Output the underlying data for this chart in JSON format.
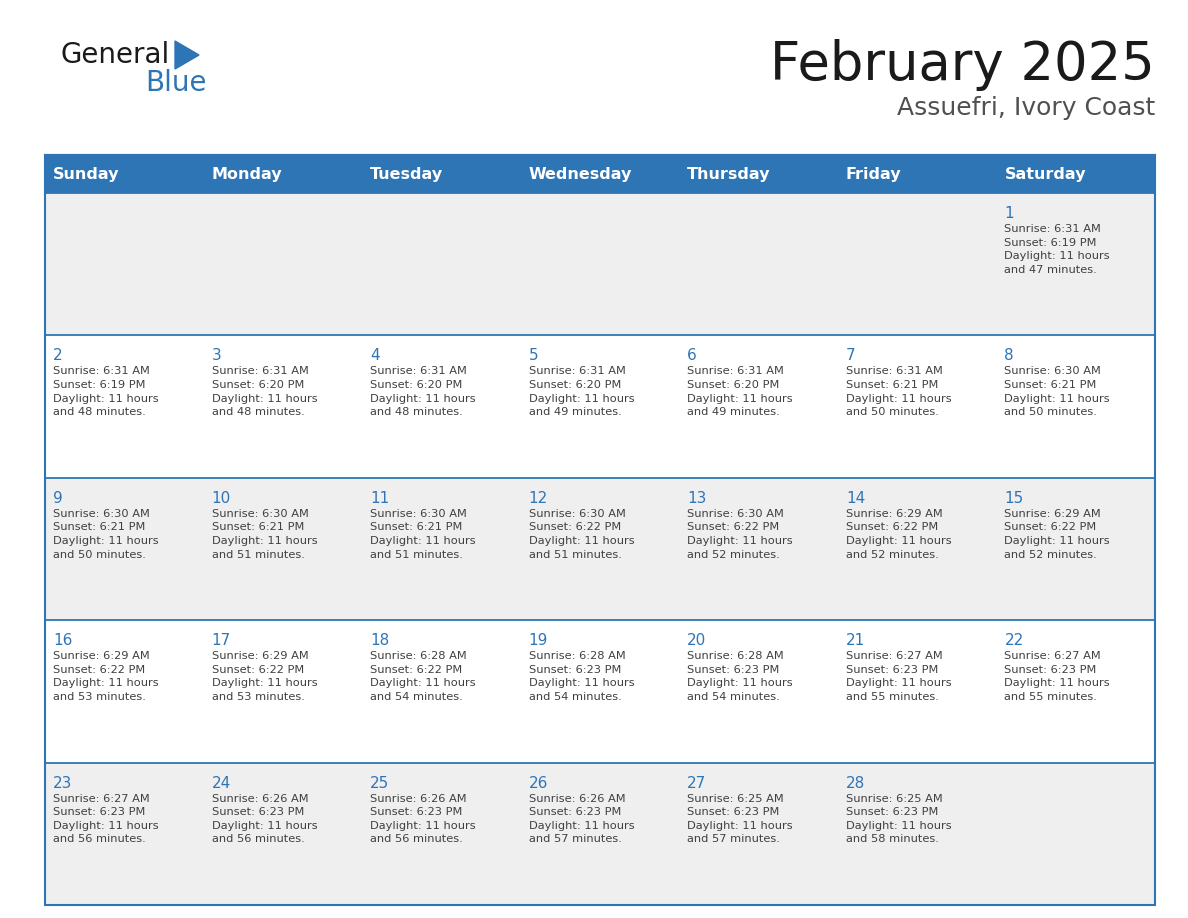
{
  "title": "February 2025",
  "subtitle": "Assuefri, Ivory Coast",
  "header_bg": "#2E75B6",
  "header_text_color": "#FFFFFF",
  "grid_line_color": "#2E75B6",
  "day_headers": [
    "Sunday",
    "Monday",
    "Tuesday",
    "Wednesday",
    "Thursday",
    "Friday",
    "Saturday"
  ],
  "weeks": [
    [
      {
        "day": null,
        "info": null
      },
      {
        "day": null,
        "info": null
      },
      {
        "day": null,
        "info": null
      },
      {
        "day": null,
        "info": null
      },
      {
        "day": null,
        "info": null
      },
      {
        "day": null,
        "info": null
      },
      {
        "day": 1,
        "info": "Sunrise: 6:31 AM\nSunset: 6:19 PM\nDaylight: 11 hours\nand 47 minutes."
      }
    ],
    [
      {
        "day": 2,
        "info": "Sunrise: 6:31 AM\nSunset: 6:19 PM\nDaylight: 11 hours\nand 48 minutes."
      },
      {
        "day": 3,
        "info": "Sunrise: 6:31 AM\nSunset: 6:20 PM\nDaylight: 11 hours\nand 48 minutes."
      },
      {
        "day": 4,
        "info": "Sunrise: 6:31 AM\nSunset: 6:20 PM\nDaylight: 11 hours\nand 48 minutes."
      },
      {
        "day": 5,
        "info": "Sunrise: 6:31 AM\nSunset: 6:20 PM\nDaylight: 11 hours\nand 49 minutes."
      },
      {
        "day": 6,
        "info": "Sunrise: 6:31 AM\nSunset: 6:20 PM\nDaylight: 11 hours\nand 49 minutes."
      },
      {
        "day": 7,
        "info": "Sunrise: 6:31 AM\nSunset: 6:21 PM\nDaylight: 11 hours\nand 50 minutes."
      },
      {
        "day": 8,
        "info": "Sunrise: 6:30 AM\nSunset: 6:21 PM\nDaylight: 11 hours\nand 50 minutes."
      }
    ],
    [
      {
        "day": 9,
        "info": "Sunrise: 6:30 AM\nSunset: 6:21 PM\nDaylight: 11 hours\nand 50 minutes."
      },
      {
        "day": 10,
        "info": "Sunrise: 6:30 AM\nSunset: 6:21 PM\nDaylight: 11 hours\nand 51 minutes."
      },
      {
        "day": 11,
        "info": "Sunrise: 6:30 AM\nSunset: 6:21 PM\nDaylight: 11 hours\nand 51 minutes."
      },
      {
        "day": 12,
        "info": "Sunrise: 6:30 AM\nSunset: 6:22 PM\nDaylight: 11 hours\nand 51 minutes."
      },
      {
        "day": 13,
        "info": "Sunrise: 6:30 AM\nSunset: 6:22 PM\nDaylight: 11 hours\nand 52 minutes."
      },
      {
        "day": 14,
        "info": "Sunrise: 6:29 AM\nSunset: 6:22 PM\nDaylight: 11 hours\nand 52 minutes."
      },
      {
        "day": 15,
        "info": "Sunrise: 6:29 AM\nSunset: 6:22 PM\nDaylight: 11 hours\nand 52 minutes."
      }
    ],
    [
      {
        "day": 16,
        "info": "Sunrise: 6:29 AM\nSunset: 6:22 PM\nDaylight: 11 hours\nand 53 minutes."
      },
      {
        "day": 17,
        "info": "Sunrise: 6:29 AM\nSunset: 6:22 PM\nDaylight: 11 hours\nand 53 minutes."
      },
      {
        "day": 18,
        "info": "Sunrise: 6:28 AM\nSunset: 6:22 PM\nDaylight: 11 hours\nand 54 minutes."
      },
      {
        "day": 19,
        "info": "Sunrise: 6:28 AM\nSunset: 6:23 PM\nDaylight: 11 hours\nand 54 minutes."
      },
      {
        "day": 20,
        "info": "Sunrise: 6:28 AM\nSunset: 6:23 PM\nDaylight: 11 hours\nand 54 minutes."
      },
      {
        "day": 21,
        "info": "Sunrise: 6:27 AM\nSunset: 6:23 PM\nDaylight: 11 hours\nand 55 minutes."
      },
      {
        "day": 22,
        "info": "Sunrise: 6:27 AM\nSunset: 6:23 PM\nDaylight: 11 hours\nand 55 minutes."
      }
    ],
    [
      {
        "day": 23,
        "info": "Sunrise: 6:27 AM\nSunset: 6:23 PM\nDaylight: 11 hours\nand 56 minutes."
      },
      {
        "day": 24,
        "info": "Sunrise: 6:26 AM\nSunset: 6:23 PM\nDaylight: 11 hours\nand 56 minutes."
      },
      {
        "day": 25,
        "info": "Sunrise: 6:26 AM\nSunset: 6:23 PM\nDaylight: 11 hours\nand 56 minutes."
      },
      {
        "day": 26,
        "info": "Sunrise: 6:26 AM\nSunset: 6:23 PM\nDaylight: 11 hours\nand 57 minutes."
      },
      {
        "day": 27,
        "info": "Sunrise: 6:25 AM\nSunset: 6:23 PM\nDaylight: 11 hours\nand 57 minutes."
      },
      {
        "day": 28,
        "info": "Sunrise: 6:25 AM\nSunset: 6:23 PM\nDaylight: 11 hours\nand 58 minutes."
      },
      {
        "day": null,
        "info": null
      }
    ]
  ],
  "bg_color": "#FFFFFF",
  "row_alt_color": "#EFEFEF",
  "day_num_color": "#2E75B6",
  "info_text_color": "#404040",
  "logo_general_color": "#1A1A1A",
  "logo_blue_color": "#2E75B6",
  "title_fontsize": 38,
  "subtitle_fontsize": 18,
  "header_fontsize": 11.5,
  "day_num_fontsize": 11,
  "info_fontsize": 8.2
}
